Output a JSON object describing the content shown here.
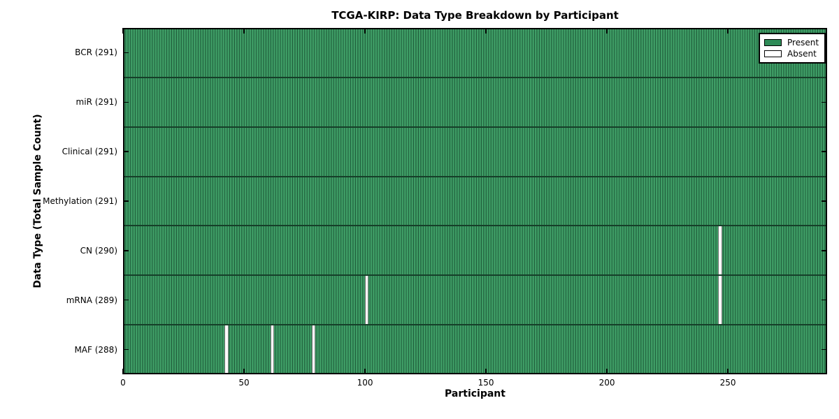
{
  "title": "TCGA-KIRP: Data Type Breakdown by Participant",
  "x_axis_label": "Participant",
  "y_axis_label": "Data Type (Total Sample Count)",
  "legend": {
    "position": "upper right",
    "items": [
      {
        "label": "Present",
        "color": "#2e8b57"
      },
      {
        "label": "Absent",
        "color": "#ffffff"
      }
    ]
  },
  "chart_data": {
    "type": "heatmap",
    "title": "TCGA-KIRP: Data Type Breakdown by Participant",
    "xlabel": "Participant",
    "ylabel": "Data Type (Total Sample Count)",
    "x_range": [
      0,
      291
    ],
    "x_ticks": [
      0,
      50,
      100,
      150,
      200,
      250
    ],
    "n_participants": 291,
    "legend": [
      "Present",
      "Absent"
    ],
    "categories": [
      "BCR (291)",
      "miR (291)",
      "Clinical (291)",
      "Methylation (291)",
      "CN (290)",
      "mRNA (289)",
      "MAF (288)"
    ],
    "series": [
      {
        "name": "BCR",
        "total_samples": 291,
        "absent_participants": []
      },
      {
        "name": "miR",
        "total_samples": 291,
        "absent_participants": []
      },
      {
        "name": "Clinical",
        "total_samples": 291,
        "absent_participants": []
      },
      {
        "name": "Methylation",
        "total_samples": 291,
        "absent_participants": []
      },
      {
        "name": "CN",
        "total_samples": 290,
        "absent_participants": [
          246
        ]
      },
      {
        "name": "mRNA",
        "total_samples": 289,
        "absent_participants": [
          100,
          246
        ]
      },
      {
        "name": "MAF",
        "total_samples": 288,
        "absent_participants": [
          42,
          61,
          78
        ]
      }
    ],
    "colors": {
      "present": "#2e8b57",
      "absent": "#ffffff",
      "bar_stripe_light": "#3f9e66",
      "bar_stripe_dark": "#1f5d3b",
      "row_separator": "#163f29"
    }
  }
}
